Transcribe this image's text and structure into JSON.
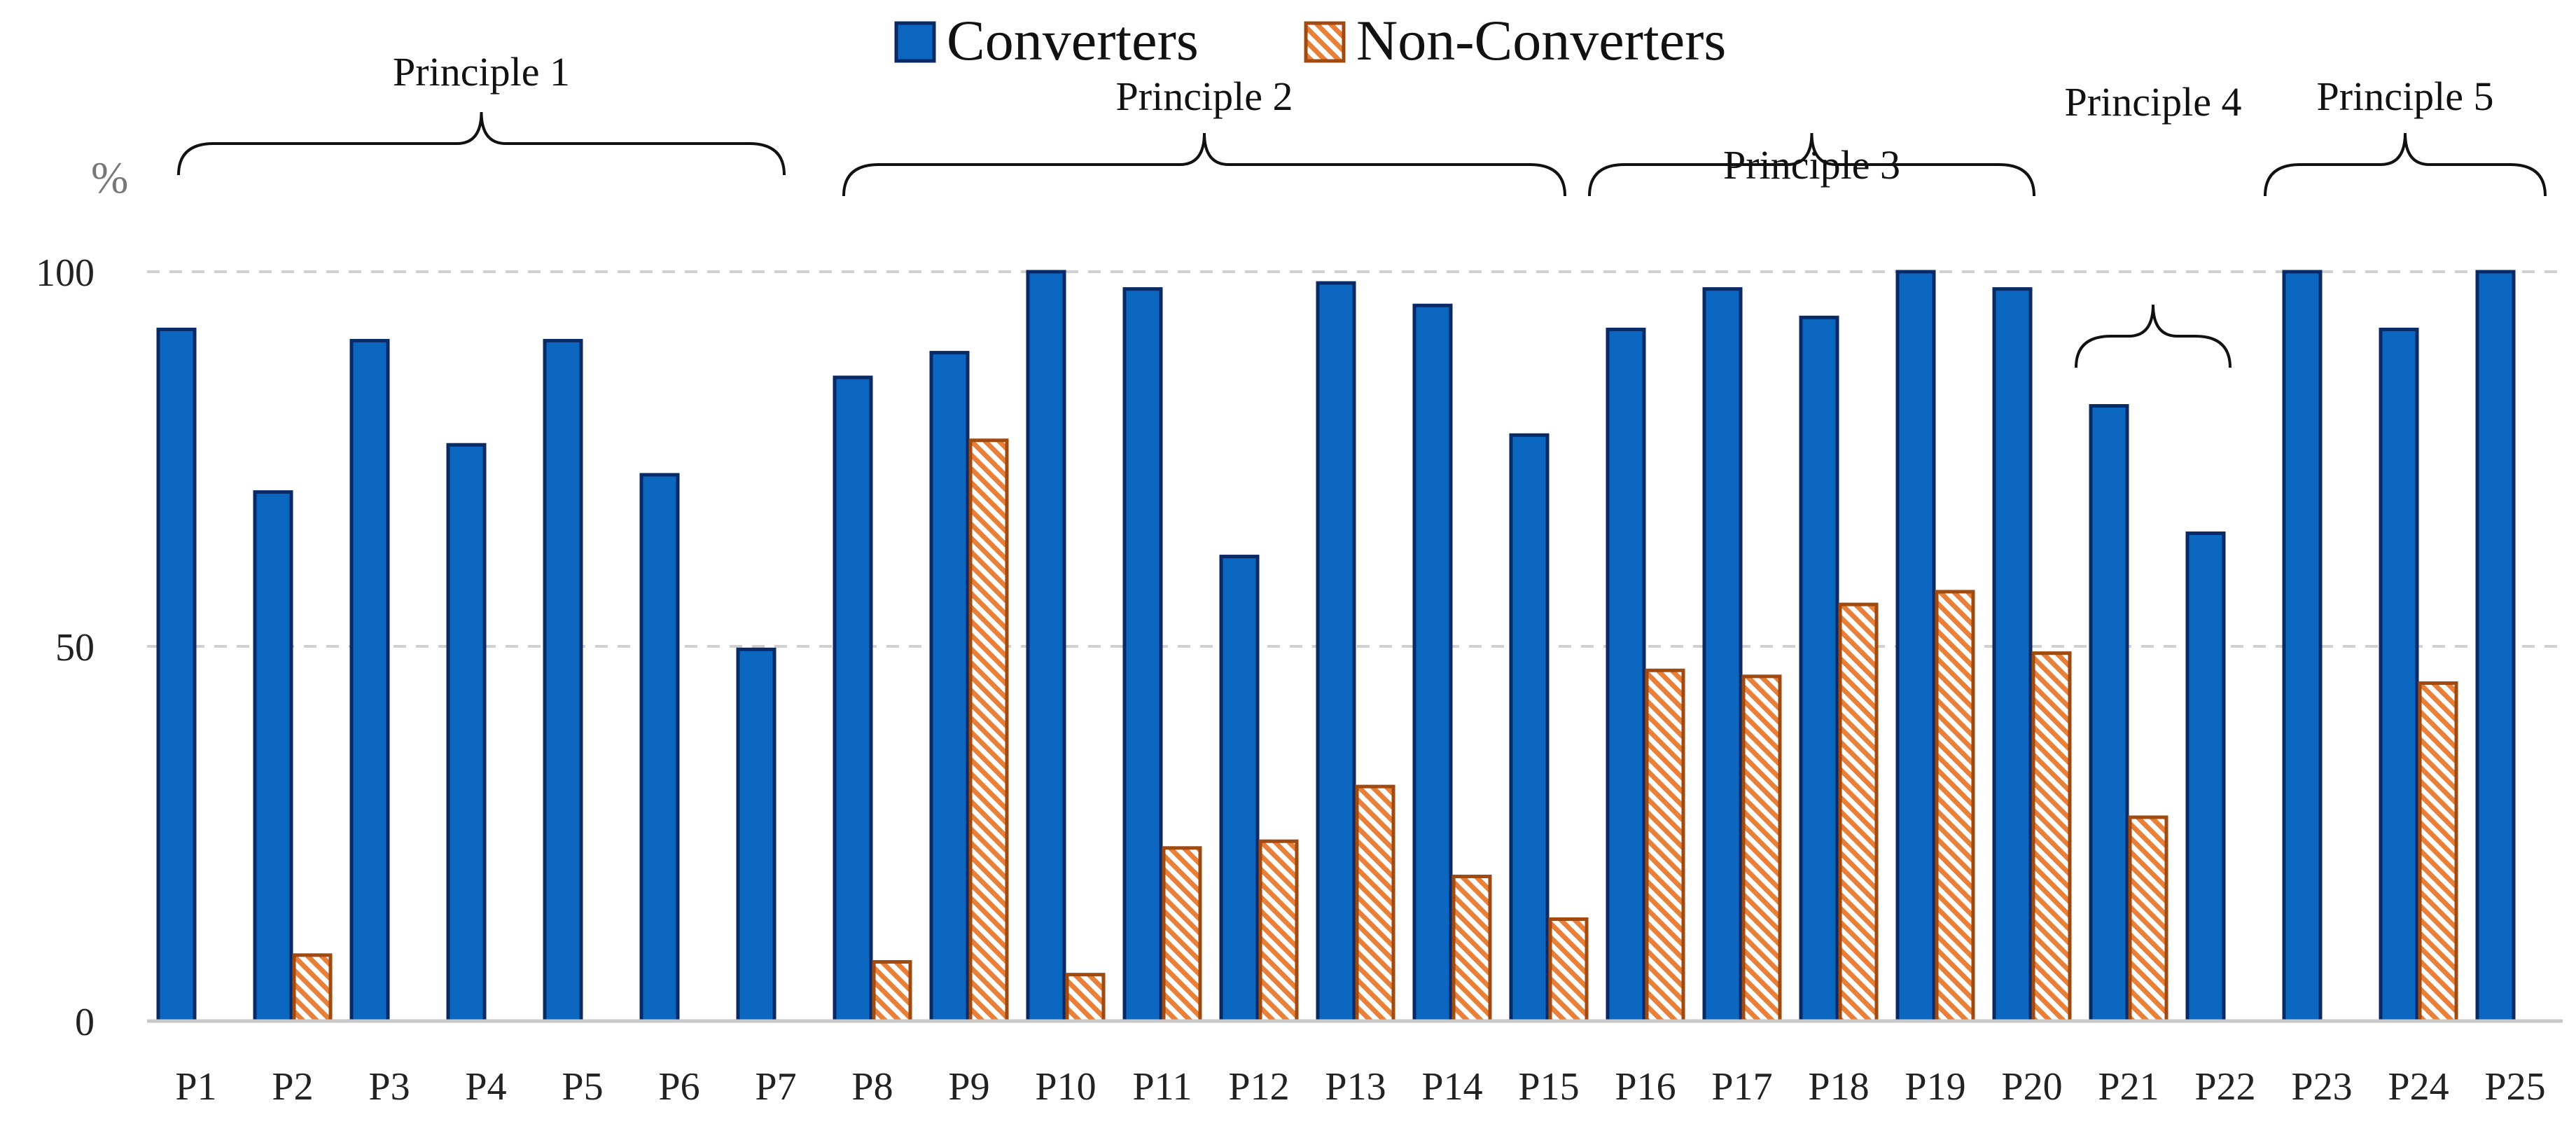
{
  "chart_data": {
    "type": "bar",
    "title": "",
    "xlabel": "",
    "ylabel": "%",
    "ylim": [
      0,
      100
    ],
    "yticks": [
      "0",
      "50",
      "100"
    ],
    "grid": true,
    "legend_position": "top-center",
    "categories": [
      "P1",
      "P2",
      "P3",
      "P4",
      "P5",
      "P6",
      "P7",
      "P8",
      "P9",
      "P10",
      "P11",
      "P12",
      "P13",
      "P14",
      "P15",
      "P16",
      "P17",
      "P18",
      "P19",
      "P20",
      "P21",
      "P22",
      "P23",
      "P24",
      "P25"
    ],
    "series": [
      {
        "name": "Converters",
        "color": "#0b67c0",
        "stroke": "#0a2a66",
        "pattern": "solid",
        "values": [
          92.3,
          70.6,
          90.8,
          76.9,
          90.8,
          72.9,
          49.6,
          85.9,
          89.2,
          100,
          97.7,
          62,
          98.5,
          95.5,
          78.2,
          92.3,
          97.7,
          93.9,
          100,
          97.7,
          82.1,
          65.1,
          100,
          92.3,
          100
        ]
      },
      {
        "name": "Non-Converters",
        "color": "#e9803a",
        "stroke": "#a04a10",
        "pattern": "hatched",
        "values": [
          null,
          8.8,
          null,
          null,
          null,
          null,
          null,
          7.9,
          77.5,
          6.2,
          23.1,
          24,
          31.3,
          19.3,
          13.6,
          46.8,
          46,
          55.6,
          57.3,
          49.1,
          27.2,
          null,
          null,
          45.1,
          null
        ]
      }
    ],
    "groups": [
      {
        "label": "Principle 1",
        "start": "P1",
        "end": "P7"
      },
      {
        "label": "Principle 2",
        "start": "P8",
        "end": "P15"
      },
      {
        "label": "Principle 3",
        "start": "P16",
        "end": "P20"
      },
      {
        "label": "Principle 4",
        "start": "P21",
        "end": "P22"
      },
      {
        "label": "Principle 5",
        "start": "P23",
        "end": "P25"
      }
    ]
  }
}
